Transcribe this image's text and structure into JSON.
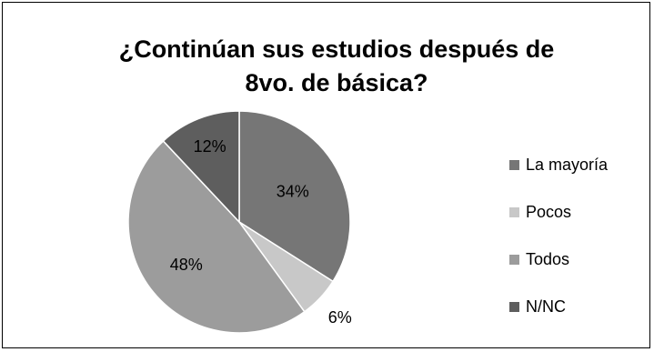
{
  "chart_data": {
    "type": "pie",
    "title": [
      "¿Continúan sus estudios después de",
      "8vo. de básica?"
    ],
    "categories": [
      "La mayoría",
      "Pocos",
      "Todos",
      "N/NC"
    ],
    "values": [
      34,
      6,
      48,
      12
    ],
    "labels": [
      "34%",
      "6%",
      "48%",
      "12%"
    ],
    "colors": [
      "#767676",
      "#c8c8c8",
      "#9c9c9c",
      "#5e5e5e"
    ],
    "legend_position": "right"
  }
}
